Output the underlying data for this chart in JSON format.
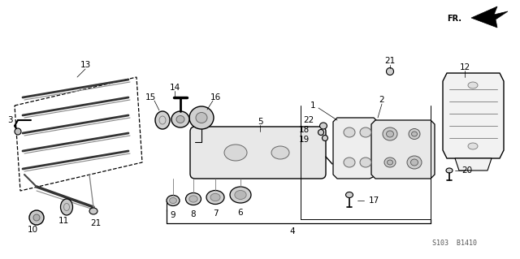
{
  "background_color": "#ffffff",
  "fig_width": 6.4,
  "fig_height": 3.19,
  "dpi": 100,
  "watermark": "S103  B1410",
  "fr_label": "FR."
}
